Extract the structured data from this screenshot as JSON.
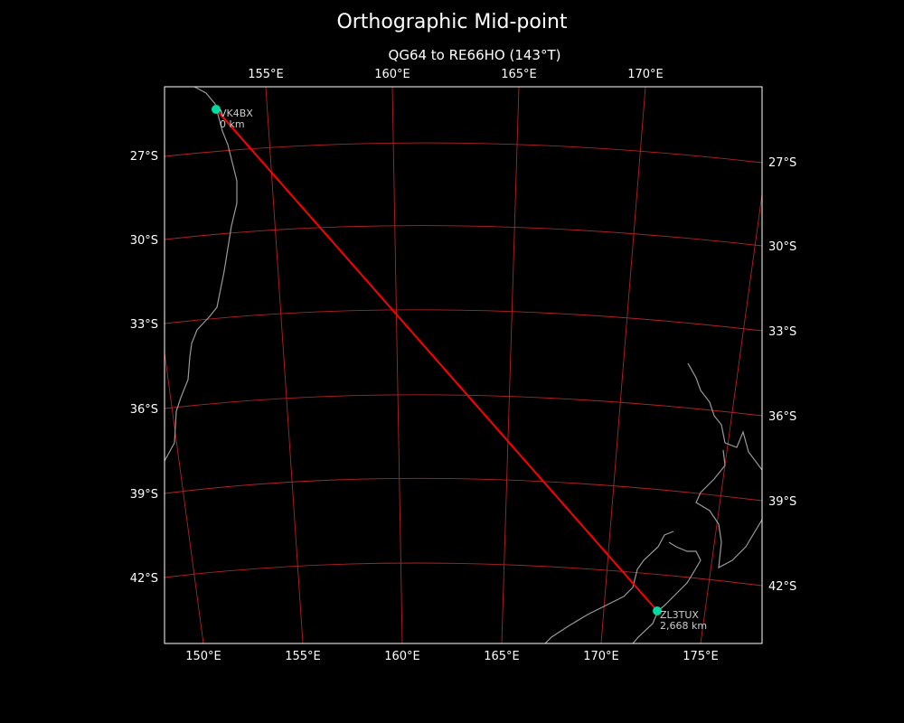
{
  "title": "Orthographic Mid-point",
  "subtitle": "QG64 to RE66HO (143°T)",
  "colors": {
    "background": "#000000",
    "grid": "#b22222",
    "path": "#ff0000",
    "marker": "#00d9a0",
    "coast": "#999999"
  },
  "axes": {
    "top_lon_ticks": [
      "155°E",
      "160°E",
      "165°E",
      "170°E"
    ],
    "bottom_lon_ticks": [
      "150°E",
      "155°E",
      "160°E",
      "165°E",
      "170°E",
      "175°E"
    ],
    "left_lat_ticks": [
      "27°S",
      "30°S",
      "33°S",
      "36°S",
      "39°S",
      "42°S"
    ],
    "right_lat_ticks": [
      "27°S",
      "30°S",
      "33°S",
      "36°S",
      "39°S",
      "42°S"
    ]
  },
  "points": [
    {
      "call": "VK4BX",
      "distance": "0 km"
    },
    {
      "call": "ZL3TUX",
      "distance": "2,668 km"
    }
  ]
}
